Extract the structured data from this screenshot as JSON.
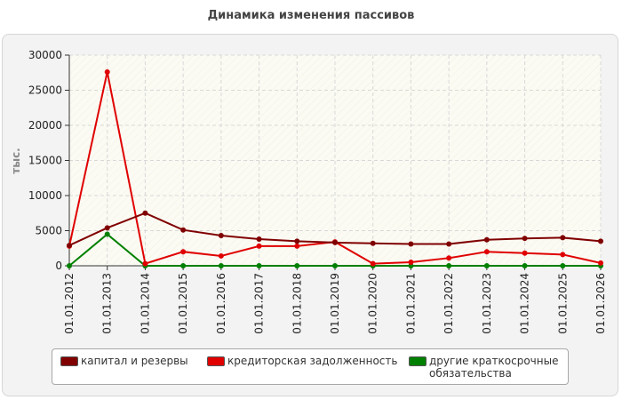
{
  "chart_data": {
    "type": "line",
    "title": "Динамика изменения пассивов",
    "ylabel": "тыс.",
    "xlabel": "",
    "x": [
      "01.01.2012",
      "01.01.2013",
      "01.01.2014",
      "01.01.2015",
      "01.01.2016",
      "01.01.2017",
      "01.01.2018",
      "01.01.2019",
      "01.01.2020",
      "01.01.2021",
      "01.01.2022",
      "01.01.2023",
      "01.01.2024",
      "01.01.2025",
      "01.01.2026"
    ],
    "ylim": [
      0,
      30000
    ],
    "yticks": [
      "0",
      "5000",
      "10000",
      "15000",
      "20000",
      "25000",
      "30000"
    ],
    "grid": true,
    "legend_position": "bottom",
    "series": [
      {
        "name": "капитал и резервы",
        "color": "#800000",
        "values": [
          2900,
          5400,
          7500,
          5100,
          4300,
          3800,
          3500,
          3300,
          3200,
          3100,
          3100,
          3700,
          3900,
          4000,
          3500
        ]
      },
      {
        "name": "кредиторская задолженность",
        "color": "#e00000",
        "values": [
          2800,
          27600,
          300,
          2000,
          1400,
          2800,
          2800,
          3400,
          300,
          500,
          1100,
          2000,
          1800,
          1600,
          400
        ]
      },
      {
        "name": "другие краткосрочные\nобязательства",
        "color": "#008000",
        "values": [
          0,
          4500,
          0,
          0,
          0,
          0,
          0,
          0,
          0,
          0,
          0,
          0,
          0,
          0,
          0
        ]
      }
    ]
  }
}
